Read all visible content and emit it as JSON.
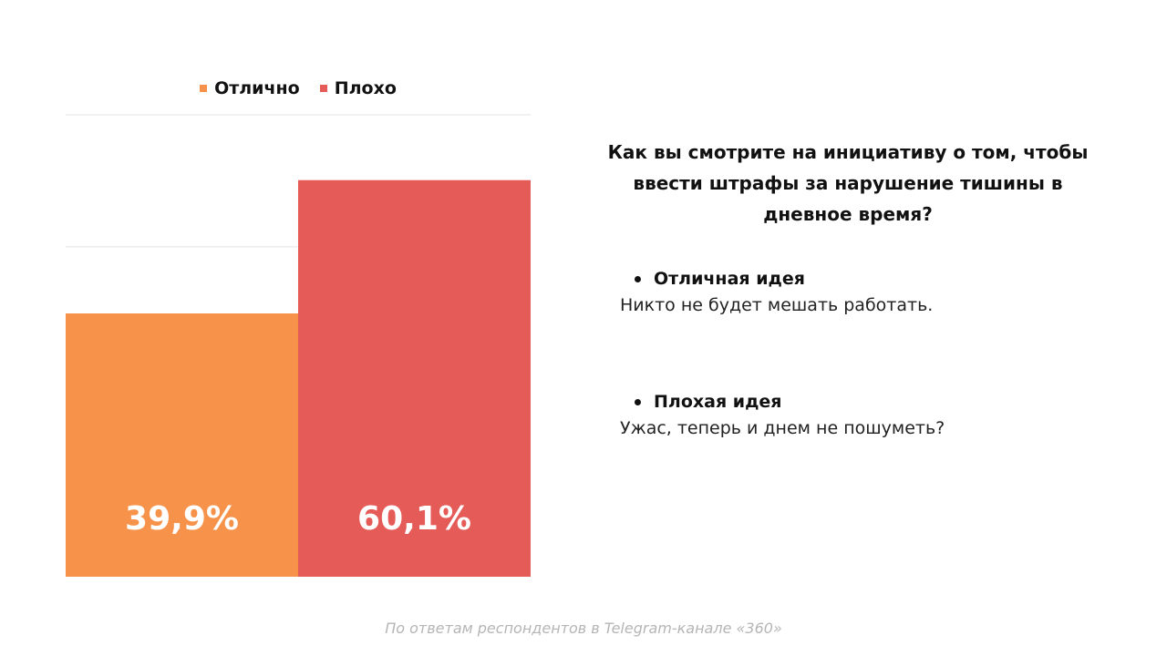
{
  "chart_data": {
    "type": "bar",
    "categories": [
      "Отлично",
      "Плохо"
    ],
    "values": [
      39.9,
      60.1
    ],
    "value_labels": [
      "39,9%",
      "60,1%"
    ],
    "colors": [
      "#F7924A",
      "#E55B57"
    ],
    "ylim": [
      0,
      70
    ],
    "grid": true,
    "legend": "top-center",
    "title": "",
    "xlabel": "",
    "ylabel": ""
  },
  "legend": {
    "items": [
      {
        "label": "Отлично",
        "color": "#F7924A"
      },
      {
        "label": "Плохо",
        "color": "#E55B57"
      }
    ]
  },
  "question": "Как вы смотрите на инициативу о том, чтобы ввести штрафы за нарушение тишины в дневное время?",
  "options": [
    {
      "title": "Отличная идея",
      "text": "Никто не будет мешать работать."
    },
    {
      "title": "Плохая идея",
      "text": "Ужас, теперь и днем не пошуметь?"
    }
  ],
  "footer": "По ответам респондентов в Telegram-канале «360»"
}
